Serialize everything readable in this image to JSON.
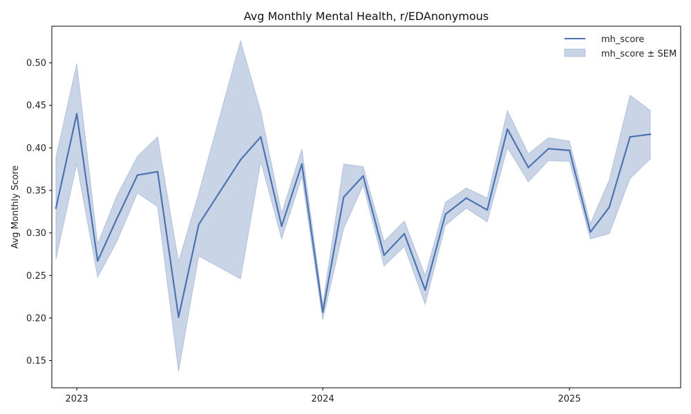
{
  "chart_data": {
    "type": "line",
    "title": "Avg Monthly Mental Health, r/EDAnonymous",
    "xlabel": "",
    "ylabel": "Avg Monthly Score",
    "xlim": [
      "2022-11-25",
      "2025-06-15"
    ],
    "ylim": [
      0.118,
      0.543
    ],
    "x_ticks": [
      "2023-01-01",
      "2024-01-01",
      "2025-01-01"
    ],
    "x_tick_labels": [
      "2023",
      "2024",
      "2025"
    ],
    "y_ticks": [
      0.15,
      0.2,
      0.25,
      0.3,
      0.35,
      0.4,
      0.45,
      0.5
    ],
    "y_tick_labels": [
      "0.15",
      "0.20",
      "0.25",
      "0.30",
      "0.35",
      "0.40",
      "0.45",
      "0.50"
    ],
    "grid": false,
    "legend_position": "top-right",
    "series": [
      {
        "name": "mh_score",
        "color": "#4c72b0",
        "x": [
          "2022-12-01",
          "2023-01-01",
          "2023-02-01",
          "2023-03-01",
          "2023-04-01",
          "2023-05-01",
          "2023-06-01",
          "2023-07-01",
          "2023-09-01",
          "2023-10-01",
          "2023-11-01",
          "2023-12-01",
          "2024-01-01",
          "2024-02-01",
          "2024-03-01",
          "2024-04-01",
          "2024-05-01",
          "2024-06-01",
          "2024-07-01",
          "2024-08-01",
          "2024-09-01",
          "2024-10-01",
          "2024-11-01",
          "2024-12-01",
          "2025-01-01",
          "2025-02-01",
          "2025-03-01",
          "2025-04-01",
          "2025-05-01"
        ],
        "y": [
          0.329,
          0.44,
          0.267,
          0.316,
          0.368,
          0.372,
          0.201,
          0.31,
          0.386,
          0.413,
          0.308,
          0.381,
          0.207,
          0.342,
          0.367,
          0.274,
          0.299,
          0.233,
          0.322,
          0.341,
          0.327,
          0.422,
          0.377,
          0.399,
          0.397,
          0.301,
          0.33,
          0.413,
          0.416
        ],
        "lower": [
          0.269,
          0.381,
          0.248,
          0.289,
          0.347,
          0.331,
          0.137,
          0.273,
          0.246,
          0.384,
          0.293,
          0.366,
          0.198,
          0.305,
          0.356,
          0.261,
          0.284,
          0.216,
          0.309,
          0.329,
          0.313,
          0.4,
          0.36,
          0.385,
          0.384,
          0.293,
          0.299,
          0.364,
          0.387
        ],
        "upper": [
          0.389,
          0.499,
          0.287,
          0.343,
          0.39,
          0.413,
          0.266,
          0.347,
          0.526,
          0.443,
          0.323,
          0.399,
          0.216,
          0.381,
          0.378,
          0.29,
          0.314,
          0.25,
          0.336,
          0.353,
          0.341,
          0.444,
          0.393,
          0.412,
          0.408,
          0.311,
          0.362,
          0.462,
          0.444
        ]
      }
    ],
    "band": {
      "name": "mh_score ± SEM",
      "color": "#4c72b0",
      "opacity": 0.3
    },
    "legend": [
      "mh_score",
      "mh_score ± SEM"
    ]
  }
}
